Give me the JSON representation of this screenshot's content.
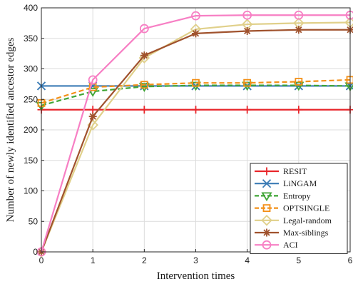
{
  "chart_data": {
    "type": "line",
    "title": "",
    "xlabel": "Intervention times",
    "ylabel": "Number of newly identified ancestor edges",
    "x": [
      0,
      1,
      2,
      3,
      4,
      5,
      6
    ],
    "xlim": [
      0,
      6
    ],
    "ylim": [
      0,
      400
    ],
    "xticks": [
      0,
      1,
      2,
      3,
      4,
      5,
      6
    ],
    "yticks": [
      0,
      50,
      100,
      150,
      200,
      250,
      300,
      350,
      400
    ],
    "grid": true,
    "legend_position": "bottom-right",
    "series": [
      {
        "name": "RESIT",
        "color": "#e8262b",
        "marker": "plus",
        "dash": "solid",
        "values": [
          233,
          233,
          233,
          233,
          233,
          233,
          233
        ]
      },
      {
        "name": "LiNGAM",
        "color": "#3a7bb5",
        "marker": "x",
        "dash": "solid",
        "values": [
          272,
          272,
          272,
          272,
          272,
          272,
          272
        ]
      },
      {
        "name": "Entropy",
        "color": "#3fa535",
        "marker": "triangle-down",
        "dash": "dashed",
        "values": [
          240,
          263,
          271,
          273,
          273,
          273,
          272
        ]
      },
      {
        "name": "OPTSINGLE",
        "color": "#f39018",
        "marker": "square",
        "dash": "dashed",
        "values": [
          244,
          270,
          274,
          277,
          277,
          279,
          282
        ]
      },
      {
        "name": "Legal-random",
        "color": "#e0d08a",
        "marker": "diamond",
        "dash": "solid",
        "values": [
          0,
          208,
          318,
          365,
          373,
          375,
          376
        ]
      },
      {
        "name": "Max-siblings",
        "color": "#a0522d",
        "marker": "asterisk",
        "dash": "solid",
        "values": [
          0,
          222,
          322,
          358,
          362,
          364,
          364
        ]
      },
      {
        "name": "ACI",
        "color": "#f77fc4",
        "marker": "circle",
        "dash": "solid",
        "values": [
          0,
          282,
          366,
          387,
          388,
          388,
          388
        ]
      }
    ]
  }
}
